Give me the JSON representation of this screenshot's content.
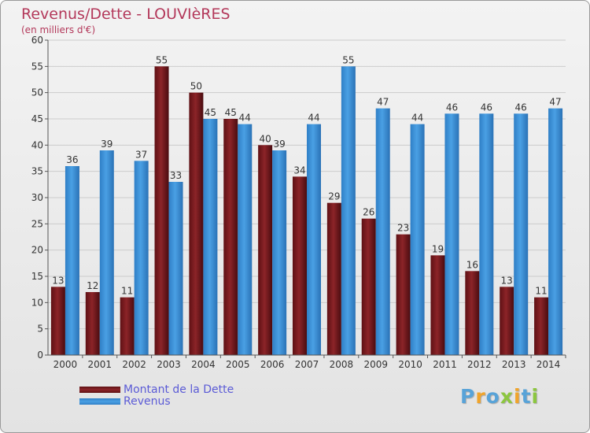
{
  "title": "Revenus/Dette - LOUVIèRES",
  "subtitle": "(en milliers d'€)",
  "brand": {
    "letters": [
      "P",
      "r",
      "o",
      "x",
      "i",
      "t",
      "i"
    ],
    "colors": [
      "#58a3d8",
      "#f0a42b",
      "#58a3d8",
      "#8cc63f",
      "#f0a42b",
      "#58a3d8",
      "#8cc63f"
    ]
  },
  "colors": {
    "dette": "#7d1a1e",
    "revenus": "#3d8fd6",
    "axis": "#555555",
    "grid": "#cccccc",
    "label": "#333333"
  },
  "chart_data": {
    "type": "bar",
    "title": "Revenus/Dette - LOUVIèRES",
    "subtitle": "(en milliers d'€)",
    "categories": [
      "2000",
      "2001",
      "2002",
      "2003",
      "2004",
      "2005",
      "2006",
      "2007",
      "2008",
      "2009",
      "2010",
      "2011",
      "2012",
      "2013",
      "2014"
    ],
    "series": [
      {
        "name": "Montant de la Dette",
        "values": [
          13,
          12,
          11,
          55,
          50,
          45,
          40,
          34,
          29,
          26,
          23,
          19,
          16,
          13,
          11
        ]
      },
      {
        "name": "Revenus",
        "values": [
          36,
          39,
          37,
          33,
          45,
          44,
          39,
          44,
          55,
          47,
          44,
          46,
          46,
          46,
          47
        ]
      }
    ],
    "ylim": [
      0,
      60
    ],
    "yticks": [
      0,
      5,
      10,
      15,
      20,
      25,
      30,
      35,
      40,
      45,
      50,
      55,
      60
    ],
    "grid": true,
    "legend": "bottom-left"
  }
}
